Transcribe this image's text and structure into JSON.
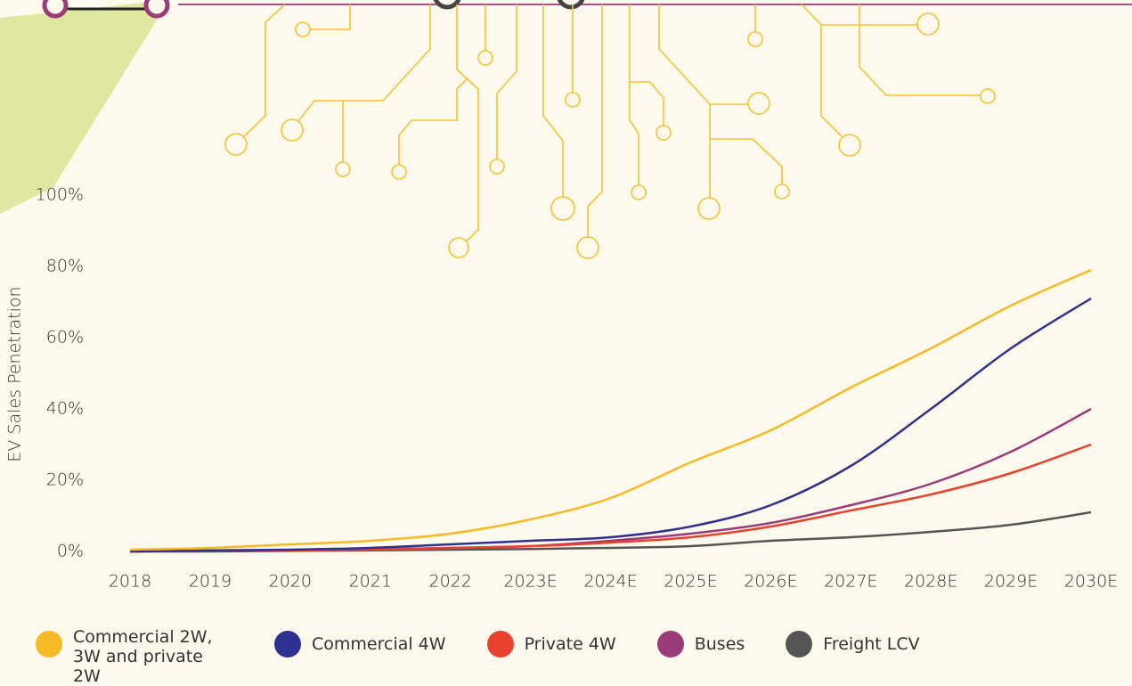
{
  "chart_data": {
    "type": "line",
    "ylabel": "EV Sales Penetration",
    "categories": [
      "2018",
      "2019",
      "2020",
      "2021",
      "2022",
      "2023E",
      "2024E",
      "2025E",
      "2026E",
      "2027E",
      "2028E",
      "2029E",
      "2030E"
    ],
    "series": [
      {
        "name": "Commercial 2W, 3W and private 2W",
        "color": "#f7b924",
        "values": [
          0.5,
          1,
          2,
          3,
          5,
          9,
          15,
          25,
          34,
          46,
          57,
          69,
          79
        ]
      },
      {
        "name": "Commercial 4W",
        "color": "#2e3190",
        "values": [
          0,
          0.3,
          0.5,
          1,
          2,
          3,
          4,
          7,
          13,
          24,
          40,
          57,
          71
        ]
      },
      {
        "name": "Private 4W",
        "color": "#e8412d",
        "values": [
          0,
          0.2,
          0.3,
          0.5,
          1,
          1.5,
          2.5,
          4,
          7,
          11.5,
          16,
          22,
          30
        ]
      },
      {
        "name": "Buses",
        "color": "#9b3b78",
        "values": [
          0,
          0.2,
          0.3,
          0.6,
          1,
          1.5,
          3,
          5,
          8,
          13,
          19,
          28,
          40
        ]
      },
      {
        "name": "Freight LCV",
        "color": "#555555",
        "values": [
          0,
          0,
          0.2,
          0.3,
          0.5,
          0.7,
          1,
          1.5,
          3,
          4,
          5.5,
          7.5,
          11
        ]
      }
    ],
    "ylim": [
      0,
      100
    ],
    "yticks": [
      {
        "value": 0,
        "label": "0%"
      },
      {
        "value": 20,
        "label": "20%"
      },
      {
        "value": 40,
        "label": "40%"
      },
      {
        "value": 60,
        "label": "60%"
      },
      {
        "value": 80,
        "label": "80%"
      },
      {
        "value": 100,
        "label": "100%"
      }
    ],
    "grid": false
  }
}
